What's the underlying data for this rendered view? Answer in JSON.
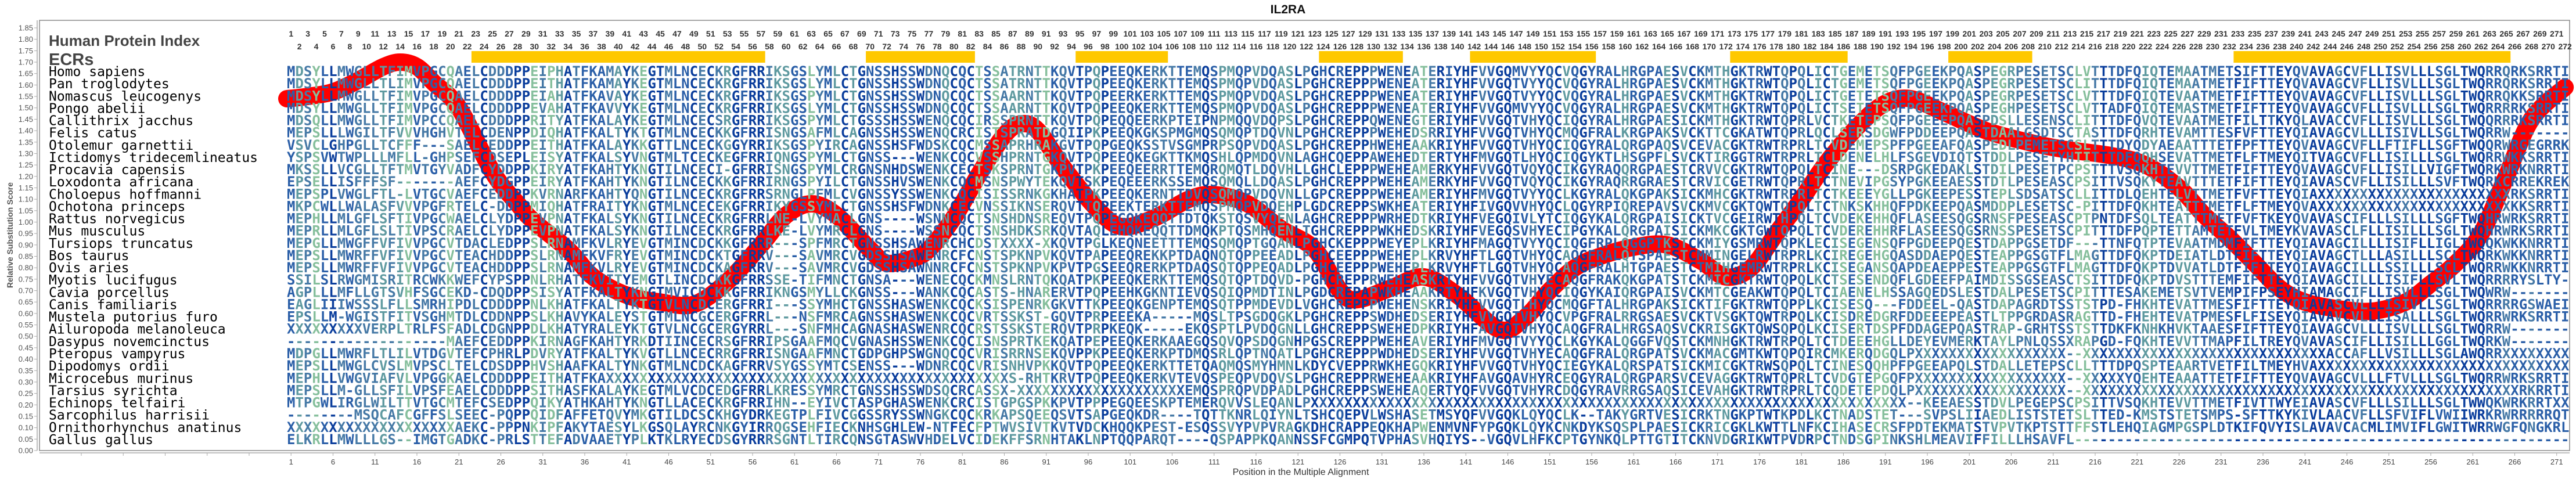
{
  "chart_data": {
    "type": "line",
    "title": "IL2RA",
    "xlabel": "Position in the Multiple Alignment",
    "ylabel": "Relative Substitution Score",
    "ylim": [
      0.0,
      1.85
    ],
    "xlim": [
      1,
      272
    ],
    "y_ticks": [
      "0.00",
      "0.05",
      "0.10",
      "0.15",
      "0.20",
      "0.25",
      "0.30",
      "0.35",
      "0.40",
      "0.45",
      "0.50",
      "0.55",
      "0.60",
      "0.65",
      "0.70",
      "0.75",
      "0.80",
      "0.85",
      "0.90",
      "0.95",
      "1.00",
      "1.05",
      "1.10",
      "1.15",
      "1.20",
      "1.25",
      "1.30",
      "1.35",
      "1.40",
      "1.45",
      "1.50",
      "1.55",
      "1.60",
      "1.65",
      "1.70",
      "1.75",
      "1.80",
      "1.85"
    ],
    "x_ticks": [
      "1",
      "6",
      "11",
      "16",
      "21",
      "26",
      "31",
      "36",
      "41",
      "46",
      "51",
      "56",
      "61",
      "66",
      "71",
      "76",
      "81",
      "86",
      "91",
      "96",
      "101",
      "106",
      "111",
      "116",
      "121",
      "126",
      "131",
      "136",
      "141",
      "146",
      "151",
      "156",
      "161",
      "166",
      "171",
      "176",
      "181",
      "186",
      "191",
      "196",
      "201",
      "206",
      "211",
      "216",
      "221",
      "226",
      "231",
      "236",
      "241",
      "246",
      "251",
      "256",
      "261",
      "266",
      "271"
    ],
    "grid": false,
    "series": [
      {
        "name": "Relative Substitution Score",
        "color": "#ff0000",
        "x": [
          0.5,
          3,
          6,
          9,
          12,
          14,
          16,
          18,
          21,
          25,
          28,
          30,
          34,
          37,
          41,
          45,
          49,
          53,
          57,
          60,
          63,
          66,
          70,
          72,
          75,
          77,
          80,
          83,
          86,
          88,
          90,
          93,
          97,
          100,
          104,
          108,
          111,
          115,
          119,
          123,
          126,
          128,
          132,
          136,
          140,
          145,
          148,
          151,
          154,
          157,
          161,
          165,
          169,
          172,
          175,
          178,
          181,
          184,
          188,
          191,
          194,
          198,
          203,
          208,
          212,
          218,
          222,
          226,
          229,
          232,
          235,
          238,
          241,
          245,
          249,
          253,
          256,
          259,
          262,
          265,
          268,
          272
        ],
        "y": [
          1.54,
          1.55,
          1.57,
          1.62,
          1.68,
          1.7,
          1.68,
          1.61,
          1.5,
          1.22,
          1.08,
          1.0,
          0.88,
          0.76,
          0.68,
          0.65,
          0.64,
          0.74,
          0.9,
          1.03,
          1.08,
          1.03,
          0.88,
          0.82,
          0.84,
          0.88,
          1.02,
          1.21,
          1.38,
          1.43,
          1.4,
          1.24,
          1.06,
          0.98,
          1.02,
          1.1,
          1.12,
          1.08,
          0.97,
          0.88,
          0.7,
          0.66,
          0.71,
          0.76,
          0.68,
          0.53,
          0.58,
          0.7,
          0.8,
          0.85,
          0.89,
          0.9,
          0.83,
          0.76,
          0.8,
          0.95,
          1.1,
          1.26,
          1.43,
          1.52,
          1.54,
          1.48,
          1.4,
          1.35,
          1.32,
          1.29,
          1.25,
          1.15,
          1.03,
          0.93,
          0.82,
          0.71,
          0.65,
          0.62,
          0.61,
          0.65,
          0.73,
          0.82,
          0.95,
          1.2,
          1.45,
          1.59
        ]
      }
    ]
  },
  "alignment": {
    "header_label": "Human Protein Index",
    "ecr_label": "ECRs",
    "positions": 272,
    "ecr_color": "#ffc800",
    "ecrs": [
      [
        23,
        57
      ],
      [
        70,
        82
      ],
      [
        95,
        105
      ],
      [
        124,
        133
      ],
      [
        142,
        156
      ],
      [
        173,
        186
      ],
      [
        199,
        208
      ],
      [
        233,
        265
      ]
    ],
    "species": [
      {
        "name": "Homo sapiens",
        "seq": [
          "MDSYLLMWGLLTFIMVPGCQAELCDDDPPEIPHATFKAMAYKEGTMLN",
          "CECKRGFRRIKSGSLYMLCTGNSSHSSWDNQCQCTSSATRNTTKQVTP",
          "QPEEQKERKTTEMQSPMQPVDQASLPGHCREPPPWENEATERIYHFVV",
          "GQMVYYQCVQGYRALHRGPAESVCKMTHGKTRWTQPQLICTGEMETSQ",
          "FPGEEKPQASPEGRPESETSCLVTTTDFQIQTEMAATMETSIFTTEYQV",
          "AVAGCVFLLISVLLLSGLTWQRRQRKSRRTI"
        ]
      },
      {
        "name": "Pan troglodytes",
        "seq": [
          "MDSYLLMWGLLTLIMVPGCQAELCDDDPPEITHATFKAMAYKEGTMLN",
          "CECKRGFRRIKSGSLYMLCTGNSSHSSWDNQCQCTSSATRNTTKQVTP",
          "QPEEQKERKTTEMQSPMQPVDQASLPGHCREPPPWENEATERIYHFVV",
          "GQTVYYQCVQGYRALHRGPAESVCKMTHGKTRWTQPQLICTGEMETSQ",
          "FPGEEKPQASPEGRPESETSCLITTTDFQIQTEMAATMETFIFTTEYQV",
          "AVAGCVFLLISVLLLSGLTWQRRQRKSRRTI"
        ]
      },
      {
        "name": "Nomascus leucogenys",
        "seq": [
          "MDSYLLMWGLLTFIMVPGCQAELCDDDPPEIAHATFKAVAYKEGTMLN",
          "CECKRGFRRIKSGSPYMLCTGNSSHSSWDNQCQCTSSAARNTTKQVTP",
          "QPEERKERKTTEMQSPMQPVDQASLPGHCREPPPWENEATERIYHFVV",
          "GQTVYYQCVQGYRALHRGPAESVCKMTHGKTRWTQPQLICTGETETSQ",
          "FPGEEKPQASPEGRPESETSCLVTTTDFQIQTEVAATMETFIFTTEYQV",
          "AVAGCVFLLISVLLLSGLTWQRRQKKSRRTI"
        ]
      },
      {
        "name": "Pongo abelii",
        "seq": [
          "MDSYLLMWGLLTFIMVPGCQAELCDDDPPEVAHATFKAVVYKEGTMLN",
          "CECKRGFRRIKSGSLYMLCTGNSSHSSWDNQCQCTSSAARNTTKQVTP",
          "QPEEQKERKTTEMQSPMQPVDQASLPGHCREPPPWENEATERIYHFVV",
          "GQMVYYQCVQGYRALHRGPAESVCKMTHGKTRWTQPQLICTSETETSQ",
          "FPGEEKPQASPEGHPESETSCLVTTADFQIQTEMASTMETFIFTTEYQV",
          "AVAGCVFLLISVLLLSGLTWQRRRRKSRRTI"
        ]
      },
      {
        "name": "Callithrix jacchus",
        "seq": [
          "MDSQLLMWGLLTFIMVPCCQAELCDDDPPRITYATFKALAYKEGTMLN",
          "CECSRGFRRIKSGSPYMLCTGSSSHSSWENQCQCIRSSPRNTTKQVTP",
          "QPEQQEERKPTEIPNPMQQVDQPSLPGHCREPPQWENEGTERIYHFVV",
          "GQTVHYQCIQGYRALHRGPAESICKMTHGKTRWTQPRLVCTKETEPSQ",
          "FPGEEEPQASPDSLLESENSCLITTTDFQVQTEVAATMETFILTTKYQL",
          "AVACCVFLLISVLLLSGLTWQQRRRKSRRTI"
        ]
      },
      {
        "name": "Felis catus",
        "seq": [
          "MEPSLLLWGILTFVVVHGHVTELCDENPPDIQHATFKALTYKTGTMLN",
          "CECKKGFRRISNGSAFMLCAGNSSHSSWENQCRCISTSPRATDGQIIP",
          "KPEEQKGKSPMGMQSQMQPTDQVNLPGHCREPPPWEHEDSRRIYHFVV",
          "GQTVHYQCMQGFRALKRGPAKSVCKTTCGKATWTQPRLQCLSERSDGW",
          "FPDDEEPQASTDAALGSDTSCTASTTDFQRHTEVAMTTESFVFTTEYQI",
          "AVAGCVLLLISIVLLSGLTWQRRW-------"
        ]
      },
      {
        "name": "Otolemur garnettii",
        "seq": [
          "VSVCLGHPGLLTCFFF---SAELCEDDPPEITHATFKALAYKKGTTLN",
          "CECKGGYRRIKSGSPYIRCAGNSSHSFWDSKCQCMSSAPRHRAKGVTP",
          "QPGEQKSSTVSGMPRPSQPVDQASLPGHCREPPHWEHEAAKRIYHFVV",
          "GQTVHYQCIQGYRALQRGPAQSVCEVACGKTRWTRPRLTCVDEMEPSP",
          "FPGEEAFQASPEDLPEMETSCSLTTTDYQDYAEAATTTETFPFTTEYQV",
          "AVAGCVFLLFTIFLLSGFTWQQRWRGEGRRK"
        ]
      },
      {
        "name": "Ictidomys tridecemlineatus",
        "seq": [
          "YSPSVWTWPLLLMFLL-GHPSEFCDSEPLEISYATFKALSYVNGTMLT",
          "CECKEGFRRIQNGSPYMLCTGNSS---WENKCQCVSSHPRNTGKQVTP",
          "QPEEQKEGKTTKMQSHLQPMDQVNLAGHCQEPPAWEHEDTERTYHFMV",
          "GQTLHYQCIQGYKTLHSGPFLSVCKTIRGGTRWTRPRLTCLDENELHL",
          "FSGEVDIQTSTDDLPESETYHTITTTDFQQHSEVATTMETFLFTMEYQI",
          "TVAGCVFLLISILLLSGLTWQRRWKKSRRTI"
        ]
      },
      {
        "name": "Procavia capensis",
        "seq": [
          "MKSSLLVCGLLTFTMVTGYVADFCYDDPPKIRYATFKAHTYKNGTILN",
          "CECI-GFRRISNGSPYMLCRGNSNHDSWENKCECTSKSPRNTGKPVTP",
          "KPEEQEERRTTEMQRQMQTLDQVHLLGHCLEPPPWEHEAMERKYHFVV",
          "GQTVQYQCIKGYRAQQRGPAESTCRVVCGKTRWTQPQLTCINE---DS",
          "RPGKEDAKLSTDILPESETPCPSTTTVSQKHTEVVTTMETFIFTTEYQV",
          "AVAGCVFLLISILLVIGFTWQRKWRKNRRTI"
        ]
      },
      {
        "name": "Loxodonta africana",
        "seq": [
          "EPSELLISFFFSF-------AEFCYDGPPEIRYATFKAHTYKNGTILN",
          "CECKKGFRRIRNGSPYILCTGNSSHVSWENKCQCMSNSPWYTEKQVTS",
          "KPEQEEERKSSEMQSQMQLLDQASLPGHCREPPPWEHEAMERKYHFVV",
          "GQTVQYQCIKGYRAQRRGRAESTCRVICGETRWTQPRLTCTNEVIPGS",
          "YPGKEEAESSTDTLPESEASCPSITTVSQKYTEAVTTTETFIFTTEYQI",
          "AVASCVFLLISILLLSVFTWQRKCRREKREK"
        ]
      },
      {
        "name": "Choloepus hoffmanni",
        "seq": [
          "MEPSPLVWGLFTL-LVTGCVAEFCEDDPPKVRNARFKAHTYQNGTILN",
          "CECKRGFRRSRNGLPFMLCVGNSSYSSWENKCQCISISSRNKGKHATP",
          "KPEEQKERNTTDVQSQMQPVDQVNLLGPCREPPPWEHEAMERIYHFMV",
          "GQTVYYQCLKGYRALQKGPAKSICKMHCGKTRWTRPRLTCTKEEEYGL",
          "LPGKEEPESSTEPLSDSATSCLLITTDLQEHTELVTTMETFVFTTEYQI",
          "AXXXXXXXXXXXXXXXXXXXXXXXRKSRRTI"
        ]
      },
      {
        "name": "Ochotona princeps",
        "seq": [
          "MKPCWLLWALASFVVVPGFRTELC-DDPPMIQHATFRAITYKNGTMLN",
          "CECEKGFRRIKYGSSYMLCTGNSSHSFWDNKCECVNSSIKNSERQVTT",
          "QPEEKTERKTTEMQSPMQPVDQEHPLGDCREPPSWKHEATERIYHFIV",
          "GQVVHYQCLQGYRPIQREPAVSVCKMVCGKTQWTQPQLTCTNKSKHHQ",
          "FPDKEEPQASMDDPLESETSC-PITTDFQKHTEATTTMETFLFTMEYQV",
          "AXXXXXXXXXXXXXXXXXXXXXXXKKSRRTI"
        ]
      },
      {
        "name": "Rattus norvegicus",
        "seq": [
          "MEPHLLMLGFLSFTIVPGCWAELCLYDPPEVPNATFKALSYKNGTILN",
          "CECKRGFRRLNE-LVYMACLGNS----WSNNCQCTSNSHDNSREQVTP",
          "QPEGQKEQQTTDTQKSTQSVYQENLAGHCREPPPWRHEDTKRIYHFVE",
          "GQIVLYTCIQGYKALQRGPAISICKTVCGEIRWTHPQLTCVDEKEHHQ",
          "FLASEESQGSRNSFPESEASCPTPNTDFSQLTEATTTMETFVFTKEYQV",
          "AVASCIFLLLSILLLSGFTWQHRWRKSRRTI"
        ]
      },
      {
        "name": "Mus musculus",
        "seq": [
          "MEPRLLMLGFLSLTIVPSCRAELCLYDPPEVPNATFKALSYKNGTILN",
          "CECKRGFRRLKE-LVYMRCLGNS----WSSNCQCTSNSHDKSRKQVTA",
          "QLEHQKEQQTTDMQKPTQSMHQENLTGHCREPPPWKHEDSKRIYHFVE",
          "GQSVHYECIPGYKALQRGPAISICKMKCGKTGWTQPQLTCVDEREHHR",
          "FLASEESQGSRNSSPESETSCPITTTDFPQPTETTAMTETFVLTMEYKV",
          "AVASCLFLLISILLLSGLTWQHRWRKSRRTI"
        ]
      },
      {
        "name": "Tursiops truncatus",
        "seq": [
          "MEPGLLMWGFFVFIVVPGCVTDACLEDPPSLRNAMFKVLRYEVGTMIN",
          "CDCKKGFRRR---SPFMRCTGNSSHSAWENRCHCDSTXXXX-XKQVTP",
          "GLKEQNEETTTEMQSQMQPTGQANLPGHCKEPPPWEYEPLKRIYHFMA",
          "GQTVYYQCIQGFRPLQGGPTKSTCKMIYGSMRWTQPKLECISEGENSQ",
          "FPGDEEPQESTDAPPGSETDF---TTNFQTPTEVAATMDMFIFTTEYQI",
          "AVAGCILLLISIFLLIGLTWQQKWKKNRRTI"
        ]
      },
      {
        "name": "Bos taurus",
        "seq": [
          "MEPSLLMWRFFVFIVVPGCVTEACHDDPPSLRNAMFKVFRYEVGTMIN",
          "CDCKTGFRRV---SAVMRCVGDSSHSAWENRCFCNSTSPKNPVKQVTP",
          "APEEQREKKPTDAQNQTQPPEEADLPGHCEEPPPWEHEPLKRVYHFTL",
          "GQTVHYQCAQGFRALQTSPAESTCMMINGELRWTRPRLKCIREGEHGQ",
          "ASDDAEPQESTEAPPGSGTFLMAGTTDFQKPTDEIATLDTFIFTTEYQI",
          "AVAGCTLLLASILLLSCLTWQRKWKKNRRTI"
        ]
      },
      {
        "name": "Ovis aries",
        "seq": [
          "MEPSLLMWRFFVFIVVPGCVTEACHDDPPSLRNAMFKVLRYEVGTMIN",
          "CDCKAGFRRV---SAVMRCVGDSSHSAWNNRCFCNSTSPKNPVKPVTP",
          "GSEEQRERKPTDAQSQTQPPEQADLPGHCEEPPPWEHEPLKRVYHFTL",
          "GQTVHYQCAQGFRALHTGPAESTCTMIHGEMRWTRPRLKCISEGANSQ",
          "APDEAEPPESTEAPPGSGTFLMAGTTDFQKPTDVVATLDTFIFTTEYQI",
          "AVAGCILLLSSILLLSCLTWQRRWKKNRRTI"
        ]
      },
      {
        "name": "Myotis lucifugus",
        "seq": [
          "SSILSLRWGMISRITRCWKKWEFCYPSPPNLRHATFKVITYEMGTLIN",
          "CDCKKGFRRSSE-TIFMNCTGNSA---WENECQCKMNSLRNTQKQATP",
          "KPEEQKERKTTEMQSQTQPTDQVD-PGHCREPPRWEHEASKRTYHFVV",
          "GQTVHYECAQGFRAKQKGPATSTCKMICGKTRWTQPQLKCTSESENDQ",
          "FLGDEEFPAIMDISSGSEASCTSITTDFQKPTDVSTTTEMFIFTTEYQI",
          "AVAGCILLLISIFLLSVLTWQRRRRYSLTY-"
        ]
      },
      {
        "name": "Cavia porcellus",
        "seq": [
          "AGPLLLMFLLGTSVHFSGCEKD-CDQDPPSISYATFKALTYKNGTMVI",
          "CDCKKGFRRIKNGSMYLLCKGNSS---WANKCQCASTS-HNARERVTP",
          "QPEEHKGKNTIEVQSQIQPMDTINLPGDCREPAPWKHEAAKRTYHFKV",
          "GQTVHYQCIQGYKAIQRGPAISVCKMTCGEAKWTQPQLTCIAENELHS",
          "SAGQEDSLESTDALPESETSCPITTTESAKEMETSVTVEMPIFPSEYHI",
          "AMAGCIFLLISVLLLSGLTWQWRW-------"
        ]
      },
      {
        "name": "Canis familiaris",
        "seq": [
          "EAGLIIIWSSSLFLLSMRHIPDLCDDDPPNLKHATFKALTYKTGTVLN",
          "CDCERGFRRI---SSYMHCTGNSSHASWENKCQCKSISPENRKGKVTT",
          "KPEEQKGENPTEMQSQTPPMDEVDLVGHCREPPPWEHENSKRIYHFVV",
          "GQTLHYQCMQGFTALHRGPAKSICKTIFGKTRWTQPPLKCISESQ---",
          "FDDEEL-QASTDAPAGRDTSSTSTPD-FHKHTEVATTMESFIFTTEYQI",
          "AVASCVLLLISIVLLSGLTWQRRRRGSWAEI"
        ]
      },
      {
        "name": "Mustela putorius furo",
        "seq": [
          "EPSLLM-WGISTFITVSGHMTDLCDDNPPSLKHAVYKALEYSTGTMLN",
          "CGCERGFRRL---NSFMRCAGNSSHASWENKCQCVRTSSKST-GQVTP",
          "RPEEEKA-----MQSLTPSGDQGKLPGHCREPPSWDHEDSERIYHFVV",
          "GQTVHYQCVPGFRALRRGSAESVCKTVSGKTQWTRPQLKCISDREDGR",
          "FDDEEEPEASTLTPPGRDASRAGTTD-FHEHTEVATPMESFLFISEYQI",
          "AVAVCVLLLISALLLSGLTWQRRWRKSRRTI"
        ]
      },
      {
        "name": "Ailuropoda melanoleuca",
        "seq": [
          "XXXXXXXXXVERPLTRLFSFADLCDGNPPDLKHATYRALEYKTGTVLN",
          "CGCERGYRRL---SNFMHCAGNASHASWENRCQCRSTSSKSTERQVTP",
          "RPKEQK-----EKQSPTLPVDQGNLLGHCREPPSWEHEDPKRIYHFAV",
          "GQTVHYQCAQGFRALHRGSAQSVCKRISGKTQWSQPQLKCISERTDSP",
          "FDDAGEPQASTRAP-GRHTSSTSTTDKFKNHKHVKTAAESFIFTTEYQI",
          "AVAGCVLLLISVLLLSGLTWQRRW-------"
        ]
      },
      {
        "name": "Dasypus novemcinctus",
        "seq": [
          "-------------------MAEFCEDDPPKIRNAGFKAHTYRKDTIIN",
          "CECRSGFRRIPSGAAFMQCVGNASHSSWENKCQCISNSPRTKEKQATP",
          "EPEEQKERKAAEGQSQVQPSDQGNHPGSCREPPPWEHEAVERIYHFMV",
          "GQTVYYQCLKGYKALQGGFVQSTCKMNHGKTRWTRPQLTCTDEEEHGL",
          "LDEYEVMERKTAYLPNLQSSXRAPGD-FQKHTEVVTTMAPFILTREYQV",
          "AVASCIFLLISILLLGGLTWQRKW-------"
        ]
      },
      {
        "name": "Pteropus vampyrus",
        "seq": [
          "MDPGLLMWRFLTLILVTDGVTEFCPHRLPDVRYATFKALTYKVGTLLN",
          "CECRRGFRRISNGAAFMNCTGDPGHPSWGNQCQCVRISRRNSEKQVPP",
          "KPEEQKERKPTDMQSRLQPTNQATLPGHCREPPPWDHEDSERIYHFVV",
          "GQTVHYECAQGFRALQRGPATSVCKMACGMTKWTQPQIRCMKERQDGQ",
          "LPXXXXXXXXXXXXXXXXXX--XXXXXXXXXXXXXXXXXXXXXXXXXXX",
          "XXACCAFLLVSILLLSGLAWQRRXXXXXXXX"
        ]
      },
      {
        "name": "Dipodomys ordii",
        "seq": [
          "MEPSLLMWGLCVSLMVPSCLTELCDSDPPHVSHAAFKALTYNKGTMLN",
          "CDCKAGFRRVSYGSSYMTCSENSS---WDNRCQCVRISNHVPKKQVTP",
          "QPEEQKERKTTETQAQMQSMYHMNLKDYCVEPPRWKHEGQKRIYHFVV",
          "GQTVHYQCIEGYKALQRSPATSICKMICGKTRWSQPQLTCINESQQHP",
          "FPGEEAPQLSTDALLETEPSCLLTTTDPQSPTEAARTVETFILTMEYHV",
          "AXXXXXXXXXXXXXXXXXXXXXXXXXXXXXX"
        ]
      },
      {
        "name": "Microcebus murinus",
        "seq": [
          "MEPHLLVWGVIAFVLVPGGKAELCDDDPPEITHATFKAXXXXXXXXXX",
          "XXXXXXXXXXXXXXXXXXXXXXXXXXXXXXXXXXXXXXS-RHTKRVTP",
          "QPEEQKERKVTEVQSPEQPVDQVSLPGHCREPPRWEHEAAKRIYHFAV",
          "GQAVHYRCEQGYRALQRGPARSVCEVAGGKTRWTQPRLTCVDGTEPGQ",
          "FPXXXXXXXXXXXXXXXXXX--XXXXXYQEHTEAAATTETFIFTTEYQV",
          "AVAGCVLLLFTVLLLSGLTWQRRWRKSRRTI"
        ]
      },
      {
        "name": "Tarsius syrichta",
        "seq": [
          "MEPSLLM-GLLSFILVPSFEAELCDDDPPSITHASFKALAYKEGTMLV",
          "CDCEDGFRRLKRESSYMRCTGNSSHSSWDSQCRCASSX-XXXXXXXXX",
          "XXXXXXXXXXXEMQSPRQPVDPADLPGHCREPPSWEHEAQERTYQFVV",
          "GQTVHYRCDQGYRAVRRGSAQSICEVAHGKTRWTRPRLTCQDETEPDQ",
          "LPXXXXXXXXXXXXXXXXXX--XXXXXXXXXXXXXXXXXXXXXXXXXXX",
          "XXXXXXXXXXXXXXXXXXXXXXXXXRKRRTI"
        ]
      },
      {
        "name": "Echinops telfairi",
        "seq": [
          "MTPGWLIRGLWILTTVTGCMTEFCSEDPPQIKYATHKAHTYKNGTLLA",
          "CECKRGFRRIHN--EYIVCTASPGHASWENKCRCISTGPGSPKKPVTP",
          "PPEGQEESKPTEMERQVVSLEQANLPXXXXXXXXXXXXXXXXXXXXXX",
          "XXXXXXXXXXXXXXXXXXXXXXXXXXXXXXXXXXXXXXXXXXXXXXXX",
          "X--KEEAESSTDVLPEGEPSCPSITTVSQKHTEVVTTMETFIVTTWYEI",
          "AVASCVFLLLSILLLSGLTWWQKWRKRRTXX"
        ]
      },
      {
        "name": "Sarcophilus harrisii",
        "seq": [
          "--------MSQCAFCGFFSLSEEC-PQPPQIDFAFFETQVYMKGTILD",
          "CSCKHGYDRKEGTPLFIVCGGSSRYSSWNGKCQCKRKAPSQEEQSVTS",
          "APGEQKDR----TQTTKNRLQIYNLTSHCQEPVLWSHASETMSYQFVV",
          "GQKLQYQCLK--TAKYGRTVESICRKTNGKPTWTKPDLKCTNADSTET",
          "---SVPSLIIAEDLISTSTETSLTTED-KMSTSTETSMPS-SFTTKYKI",
          "VLAACVFLLSFVIFLVWIIWRKRWRRRRRQT"
        ]
      },
      {
        "name": "Ornithorhynchus anatinus",
        "seq": [
          "XXXXXXXXXXXXXXXXXXXXAEKC-PPPNKIPFAKYTAESYLKGSQLA",
          "YRCNKGYIRRQGSEHFIECKNHSGHLEW-NTFECFPTWVSIVTKVTVD",
          "CKHQQKPEST-ESQSSVYPVPVRAGKDHCRAPPEQKHAPWENMVNFYP",
          "GQKLQYKCNKDYKSQSPLPAESICKRICGKLKWTTLNFKCIHASECRS",
          "FPDTEKMATSTVPVTKPTSTTFFSTLEHQIAGMPGSPLDTKIFQVYISL",
          "AVAVCACMLIMVIFLGWITWRRWGFQNGKRL"
        ]
      },
      {
        "name": "Gallus gallus",
        "seq": [
          "ELKRLLMWLLLGS--IMGTGADKC-PRLSTTEFADVAAETYPLKTKLR",
          "YECDSGYRRRSGNTLTIRCQNSGTASWVHDELVCIDEKFFSRNHTAKL",
          "NPTQQPARQT----QSPAPPKQANNSSFCGMPQTVPHASVHQIYS--V",
          "GQVLHFKCPTGYNKQLPTTGTITCKNVDGRIKWTPVDRPCTNDSGPIN",
          "KSHLMEAVIFFILLLHSAVFL----------------------------",
          "-------------------------------"
        ]
      }
    ]
  }
}
